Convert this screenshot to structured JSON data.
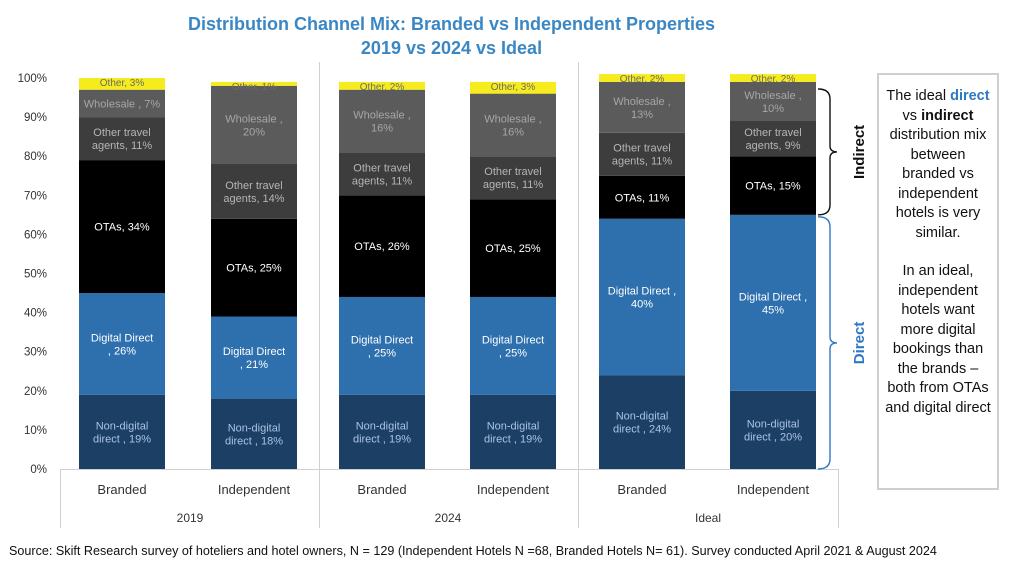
{
  "title_line1": "Distribution Channel Mix: Branded vs Independent Properties",
  "title_line2": "2019 vs 2024 vs Ideal",
  "callout": {
    "line1_prefix": "The ideal ",
    "direct_word": "direct",
    "vs_word": " vs ",
    "indirect_word": "indirect",
    "line1_suffix": " distribution mix between branded vs independent hotels is very similar.",
    "paragraph2": "In an ideal, independent hotels want more digital bookings than the brands – both from OTAs and digital direct"
  },
  "brace_labels": {
    "indirect": "Indirect",
    "direct": "Direct"
  },
  "source": "Source: Skift Research survey of hoteliers and hotel owners, N = 129 (Independent Hotels N =68, Branded Hotels N= 61). Survey conducted April 2021 & August 2024",
  "colors": {
    "non_digital_direct": "#1c3f66",
    "digital_direct": "#2e6fae",
    "otas": "#000000",
    "other_travel_agents": "#3d3d3d",
    "wholesale": "#5b5b5b",
    "other": "#f6eb1c",
    "title": "#3b87c4",
    "direct_brace": "#2f78c4"
  },
  "chart_data": {
    "type": "bar",
    "stacked": true,
    "normalized": true,
    "ylim": [
      0,
      100
    ],
    "yticks": [
      "0%",
      "10%",
      "20%",
      "30%",
      "40%",
      "50%",
      "60%",
      "70%",
      "80%",
      "90%",
      "100%"
    ],
    "grid": false,
    "groups": [
      "2019",
      "2024",
      "Ideal"
    ],
    "categories": [
      "Branded",
      "Independent",
      "Branded",
      "Independent",
      "Branded",
      "Independent"
    ],
    "series": [
      {
        "name": "Non-digital direct",
        "values": [
          19,
          18,
          19,
          19,
          24,
          20
        ],
        "labels": [
          "Non-digital direct , 19%",
          "Non-digital direct , 18%",
          "Non-digital direct , 19%",
          "Non-digital direct , 19%",
          "Non-digital direct , 24%",
          "Non-digital direct , 20%"
        ]
      },
      {
        "name": "Digital Direct",
        "values": [
          26,
          21,
          25,
          25,
          40,
          45
        ],
        "labels": [
          "Digital Direct , 26%",
          "Digital Direct , 21%",
          "Digital Direct , 25%",
          "Digital Direct , 25%",
          "Digital Direct , 40%",
          "Digital Direct , 45%"
        ]
      },
      {
        "name": "OTAs",
        "values": [
          34,
          25,
          26,
          25,
          11,
          15
        ],
        "labels": [
          "OTAs, 34%",
          "OTAs, 25%",
          "OTAs, 26%",
          "OTAs, 25%",
          "OTAs, 11%",
          "OTAs, 15%"
        ]
      },
      {
        "name": "Other travel agents",
        "values": [
          11,
          14,
          11,
          11,
          11,
          9
        ],
        "labels": [
          "Other travel agents, 11%",
          "Other travel agents, 14%",
          "Other travel agents, 11%",
          "Other travel agents, 11%",
          "Other travel agents, 11%",
          "Other travel agents, 9%"
        ]
      },
      {
        "name": "Wholesale",
        "values": [
          7,
          20,
          16,
          16,
          13,
          10
        ],
        "labels": [
          "Wholesale , 7%",
          "Wholesale , 20%",
          "Wholesale , 16%",
          "Wholesale , 16%",
          "Wholesale , 13%",
          "Wholesale , 10%"
        ]
      },
      {
        "name": "Other",
        "values": [
          3,
          1,
          2,
          3,
          2,
          2
        ],
        "labels": [
          "Other, 3%",
          "Other, 1%",
          "Other, 2%",
          "Other, 3%",
          "Other, 2%",
          "Other, 2%"
        ]
      }
    ]
  }
}
